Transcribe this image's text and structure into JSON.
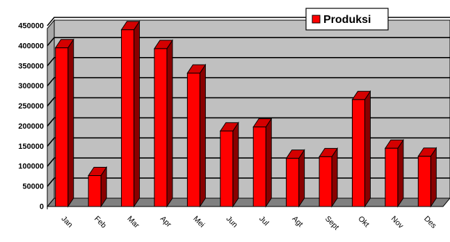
{
  "chart_data": {
    "type": "bar",
    "style": "3d-columns",
    "categories": [
      "Jan",
      "Feb",
      "Mar",
      "Apr",
      "Mei",
      "Jun",
      "Jul",
      "Agt",
      "Sept",
      "Okt",
      "Nov",
      "Des"
    ],
    "series": [
      {
        "name": "Produksi",
        "color": "#ff0000",
        "values": [
          395000,
          77000,
          440000,
          393000,
          332000,
          188000,
          198000,
          120000,
          124000,
          266000,
          145000,
          125000
        ]
      }
    ],
    "y_ticks": [
      0,
      50000,
      100000,
      150000,
      200000,
      250000,
      300000,
      350000,
      400000,
      450000
    ],
    "ylim": [
      0,
      450000
    ],
    "grid": true,
    "legend_position": "top-right",
    "colors": {
      "bar_front": "#ff0000",
      "bar_top": "#d40000",
      "bar_side": "#8a0000",
      "back_wall": "#c0c0c0",
      "floor": "#808080",
      "gridline": "#000000"
    }
  }
}
